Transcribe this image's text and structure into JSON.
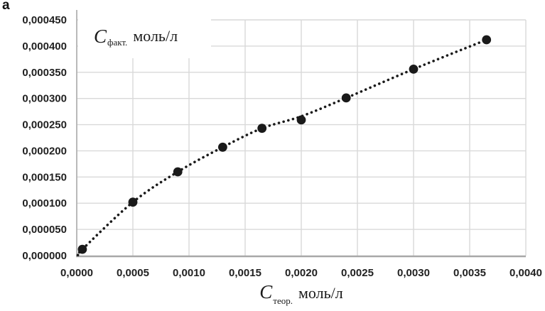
{
  "figure": {
    "corner_label": "а",
    "background": "#ffffff"
  },
  "chart_data": {
    "type": "scatter",
    "title": "",
    "xlabel": "Cтеор. моль/л",
    "ylabel": "Cфакт. моль/л",
    "x_axis": {
      "symbol": "C",
      "subscript": "теор.",
      "unit": "моль/л",
      "min": 0,
      "max": 0.004,
      "tick_step": 0.0005,
      "tick_labels": [
        "0,0000",
        "0,0005",
        "0,0010",
        "0,0015",
        "0,0020",
        "0,0025",
        "0,0030",
        "0,0035",
        "0,0040"
      ]
    },
    "y_axis": {
      "symbol": "C",
      "subscript": "факт.",
      "unit": "моль/л",
      "min": 0,
      "max": 0.00045,
      "tick_step": 5e-05,
      "tick_labels": [
        "0,000000",
        "0,000050",
        "0,000100",
        "0,000150",
        "0,000200",
        "0,000250",
        "0,000300",
        "0,000350",
        "0,000400",
        "0,000450"
      ]
    },
    "points": [
      [
        5e-05,
        1.2e-05
      ],
      [
        0.0005,
        0.000102
      ],
      [
        0.0009,
        0.00016
      ],
      [
        0.0013,
        0.000207
      ],
      [
        0.00165,
        0.000243
      ],
      [
        0.002,
        0.000259
      ],
      [
        0.0024,
        0.000301
      ],
      [
        0.003,
        0.000356
      ],
      [
        0.00365,
        0.000412
      ]
    ],
    "trend_points": [
      [
        1e-05,
        1e-06
      ],
      [
        5e-05,
        1.2e-05
      ],
      [
        0.0005,
        0.000102
      ],
      [
        0.0009,
        0.00016
      ],
      [
        0.0013,
        0.000207
      ],
      [
        0.00165,
        0.000243
      ],
      [
        0.002,
        0.000266
      ],
      [
        0.0024,
        0.000301
      ],
      [
        0.003,
        0.000356
      ],
      [
        0.00365,
        0.000412
      ]
    ],
    "trend_style": "dotted",
    "grid": true,
    "legend": "none",
    "colors": {
      "point": "#1a1a1a",
      "trend": "#1a1a1a",
      "gridline": "#d9d9d9",
      "axis": "#a8a8a8",
      "tick_text": "#212121"
    }
  }
}
